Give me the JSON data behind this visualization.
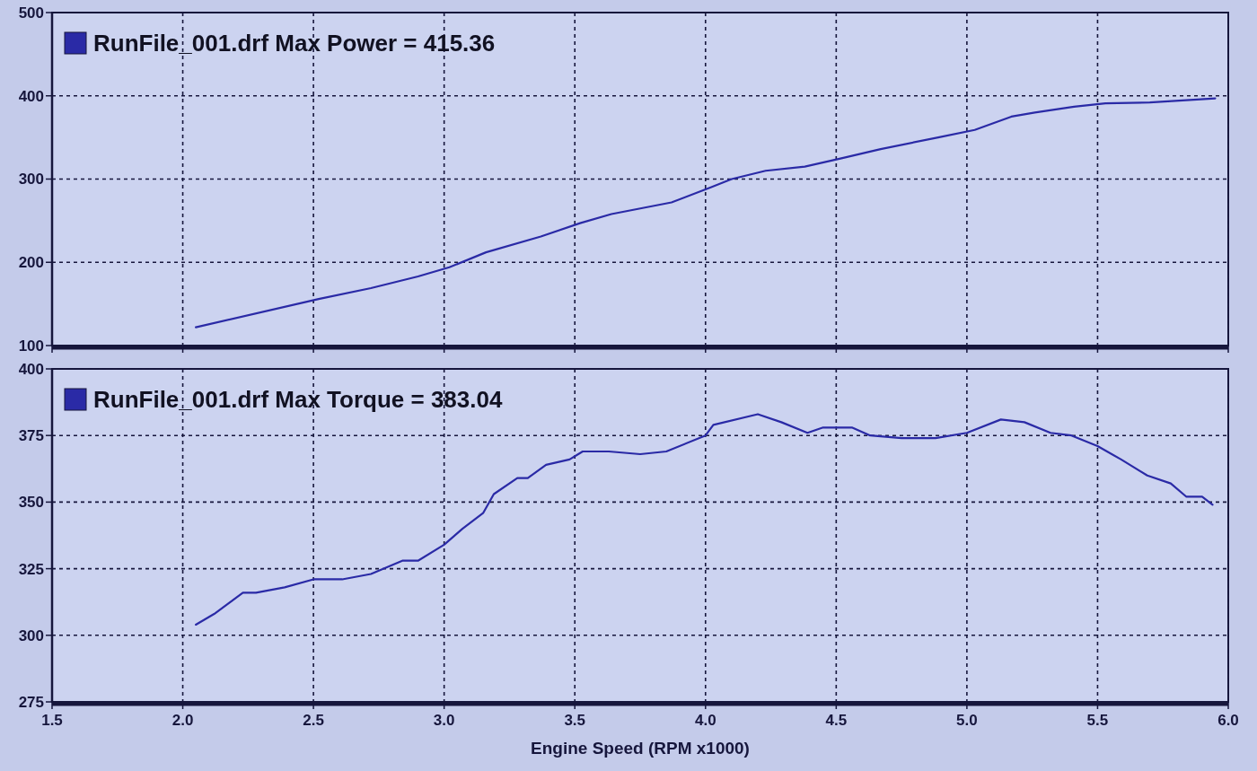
{
  "chart_data": [
    {
      "type": "line",
      "x": [
        2.05,
        2.52,
        2.72,
        2.9,
        3.02,
        3.16,
        3.37,
        3.52,
        3.64,
        3.87,
        4.02,
        4.1,
        4.23,
        4.38,
        4.52,
        4.67,
        4.89,
        5.03,
        5.17,
        5.26,
        5.41,
        5.53,
        5.7,
        5.95
      ],
      "series": [
        {
          "name": "RunFile_001.drf Max Power = 415.36",
          "color": "#2a2aa6",
          "values": [
            122,
            156,
            169,
            183,
            194,
            212,
            231,
            247,
            258,
            272,
            290,
            300,
            310,
            315,
            325,
            336,
            350,
            359,
            375,
            380,
            387,
            391,
            392,
            397
          ]
        }
      ],
      "xlim": [
        1.5,
        6.0
      ],
      "xticks": [
        1.5,
        2,
        2.5,
        3,
        3.5,
        4,
        4.5,
        5,
        5.5,
        6
      ],
      "ylim": [
        100,
        500
      ],
      "yticks": [
        100,
        200,
        300,
        400,
        500
      ],
      "grid": true,
      "legend": "top left",
      "tick_labels": "y"
    },
    {
      "type": "line",
      "x": [
        2.05,
        2.12,
        2.23,
        2.28,
        2.39,
        2.5,
        2.61,
        2.72,
        2.84,
        2.9,
        3.0,
        3.07,
        3.15,
        3.19,
        3.28,
        3.32,
        3.39,
        3.48,
        3.53,
        3.63,
        3.75,
        3.85,
        4.0,
        4.03,
        4.2,
        4.29,
        4.39,
        4.45,
        4.56,
        4.63,
        4.75,
        4.88,
        5.0,
        5.13,
        5.22,
        5.32,
        5.4,
        5.5,
        5.59,
        5.69,
        5.78,
        5.84,
        5.9,
        5.94
      ],
      "series": [
        {
          "name": "RunFile_001.drf Max Torque = 383.04",
          "color": "#2a2aa6",
          "values": [
            304,
            308,
            316,
            316,
            318,
            321,
            321,
            323,
            328,
            328,
            334,
            340,
            346,
            353,
            359,
            359,
            364,
            366,
            369,
            369,
            368,
            369,
            375,
            379,
            383,
            380,
            376,
            378,
            378,
            375,
            374,
            374,
            376,
            381,
            380,
            376,
            375,
            371,
            366,
            360,
            357,
            352,
            352,
            349
          ]
        }
      ],
      "xlim": [
        1.5,
        6.0
      ],
      "xticks": [
        1.5,
        {
          "value": 2,
          "label": "2.0"
        },
        2.5,
        {
          "value": 3,
          "label": "3.0"
        },
        3.5,
        {
          "value": 4,
          "label": "4.0"
        },
        4.5,
        {
          "value": 5,
          "label": "5.0"
        },
        5.5,
        {
          "value": 6,
          "label": "6.0"
        }
      ],
      "ylim": [
        275,
        400
      ],
      "yticks": [
        275,
        300,
        325,
        350,
        375,
        400
      ],
      "grid": true,
      "legend": "top left",
      "xlabel": "Engine Speed (RPM x1000)"
    }
  ]
}
